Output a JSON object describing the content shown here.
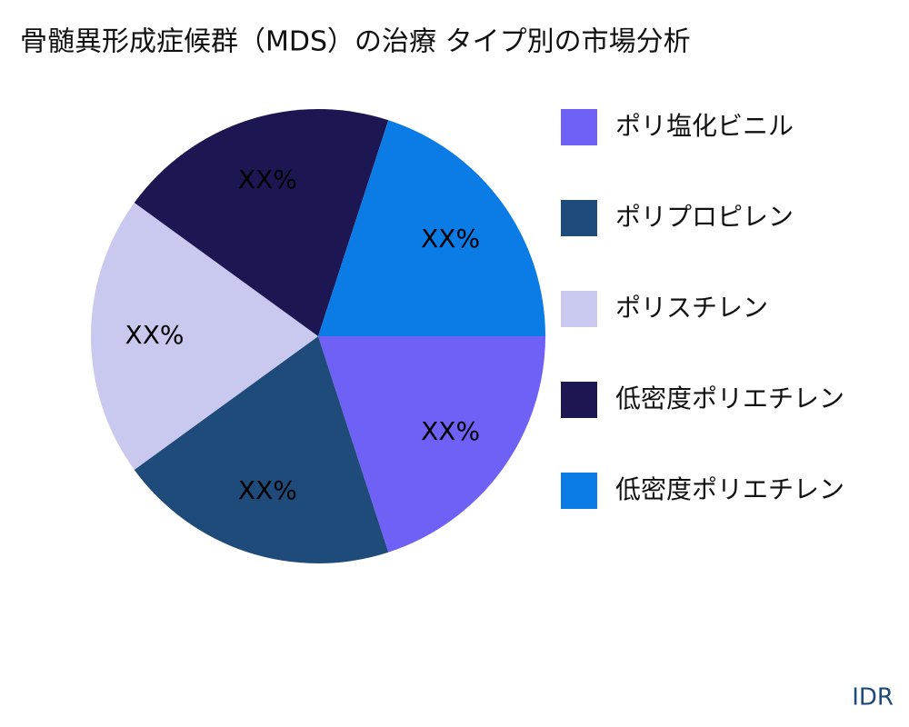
{
  "chart_data": {
    "type": "pie",
    "title": "骨髄異形成症候群（MDS）の治療 タイプ別の市場分析",
    "categories": [
      "ポリ塩化ビニル",
      "ポリプロピレン",
      "ポリスチレン",
      "低密度ポリエチレン",
      "低密度ポリエチレン"
    ],
    "values": [
      20,
      20,
      20,
      20,
      20
    ],
    "value_labels": [
      "XX%",
      "XX%",
      "XX%",
      "XX%",
      "XX%"
    ],
    "colors": [
      "#6f61f5",
      "#1f4b7a",
      "#c9c9f0",
      "#1c1752",
      "#0b7be6"
    ],
    "legend": "right",
    "source": "IDR"
  }
}
